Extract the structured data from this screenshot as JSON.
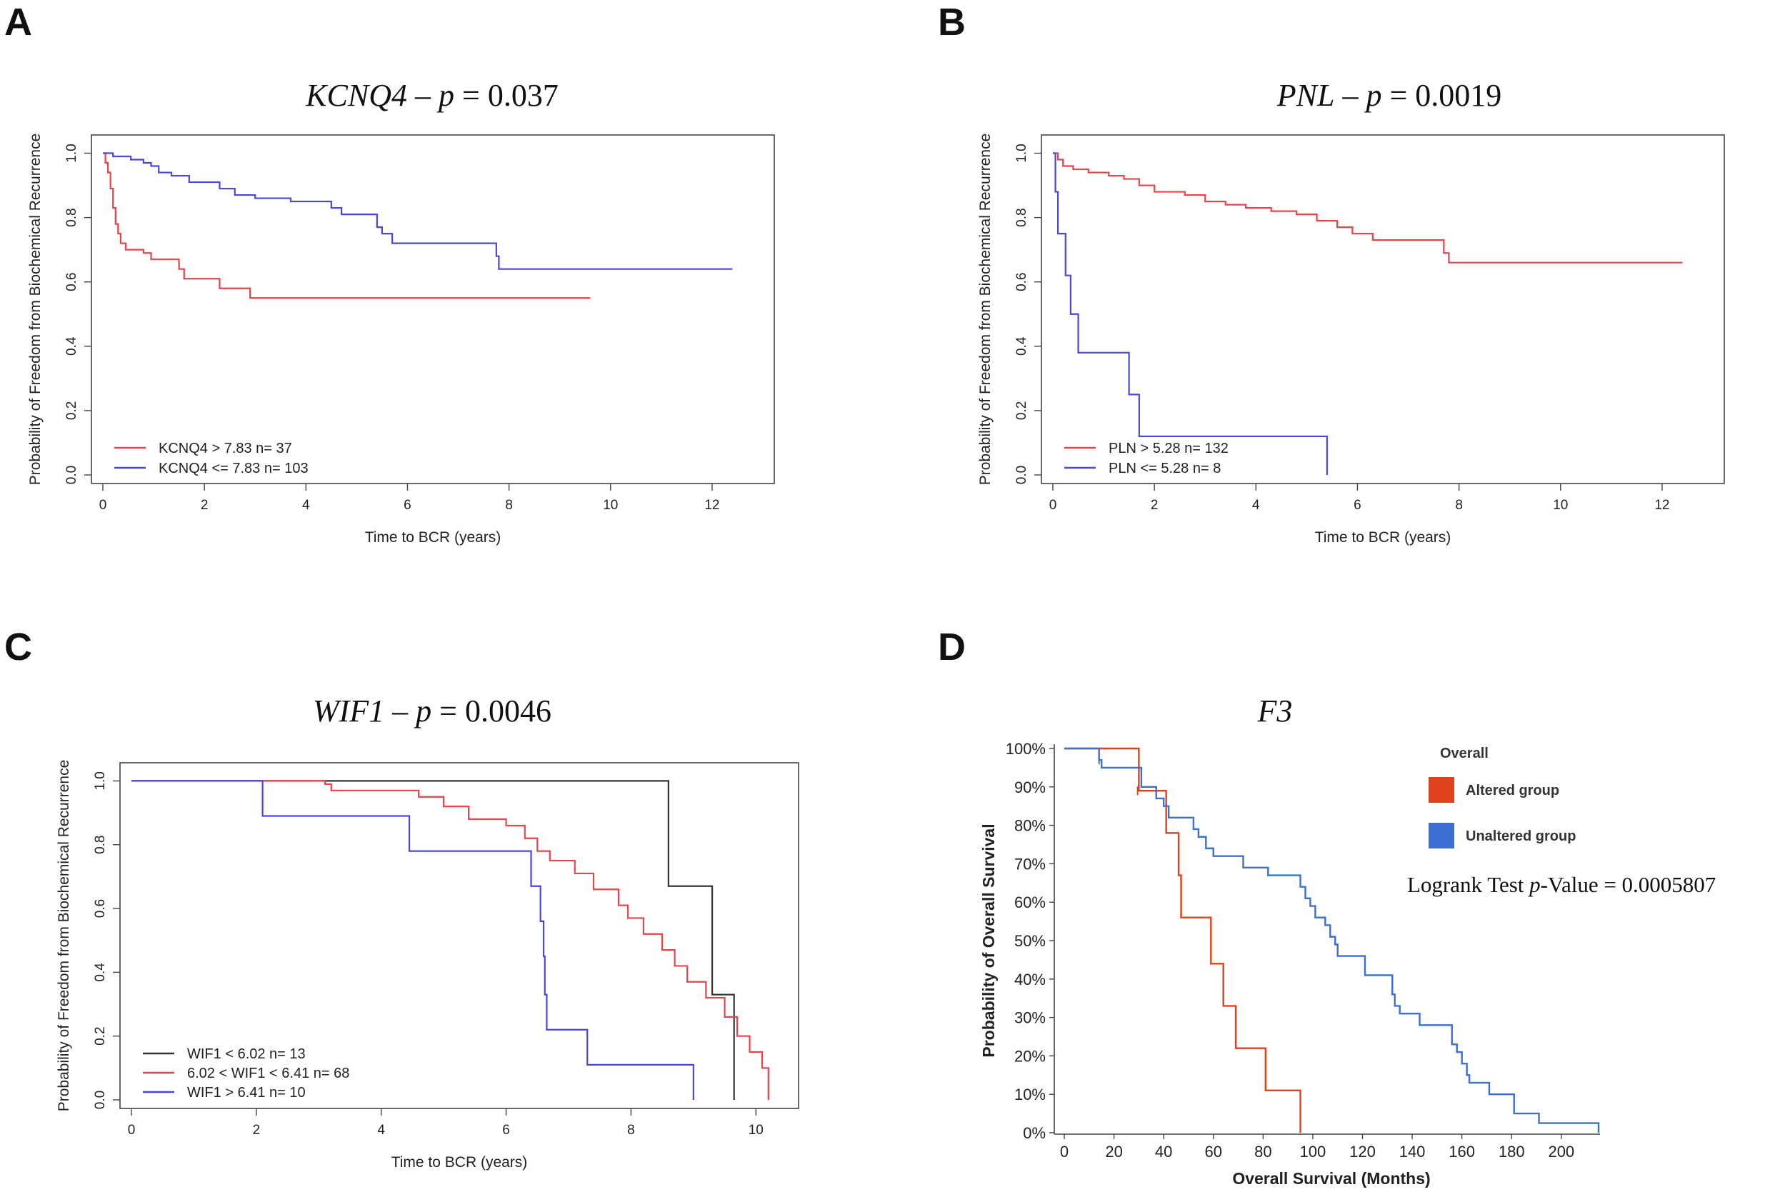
{
  "panels": [
    "A",
    "B",
    "C",
    "D"
  ],
  "titles": {
    "A": {
      "gene": "KCNQ4",
      "rest": " – ",
      "p": "p",
      "val": " = 0.037"
    },
    "B": {
      "gene": "PNL",
      "rest": " – ",
      "p": "p",
      "val": " = 0.0019"
    },
    "C": {
      "gene": "WIF1",
      "rest": " – ",
      "p": "p",
      "val": " = 0.0046"
    },
    "D": {
      "gene": "F3"
    }
  },
  "chart_data": [
    {
      "id": "A",
      "type": "line",
      "title": "KCNQ4 – p = 0.037",
      "xlabel": "Time to BCR (years)",
      "ylabel": "Probability of Freedom from Biochemical Recurrence",
      "xlim": [
        0,
        13
      ],
      "ylim": [
        0,
        1.03
      ],
      "xticks": [
        "0",
        "2",
        "4",
        "6",
        "8",
        "10",
        "12"
      ],
      "yticks": [
        "0.0",
        "0.2",
        "0.4",
        "0.6",
        "0.8",
        "1.0"
      ],
      "legend": "bottom-left",
      "series": [
        {
          "name": "KCNQ4 > 7.83 n= 37",
          "color": "#e8434b",
          "points": [
            [
              0,
              1.0
            ],
            [
              0.05,
              0.97
            ],
            [
              0.1,
              0.94
            ],
            [
              0.15,
              0.89
            ],
            [
              0.2,
              0.83
            ],
            [
              0.25,
              0.78
            ],
            [
              0.3,
              0.75
            ],
            [
              0.35,
              0.72
            ],
            [
              0.45,
              0.7
            ],
            [
              0.8,
              0.69
            ],
            [
              0.95,
              0.67
            ],
            [
              1.5,
              0.64
            ],
            [
              1.6,
              0.61
            ],
            [
              2.3,
              0.58
            ],
            [
              2.9,
              0.55
            ],
            [
              9.6,
              0.55
            ]
          ]
        },
        {
          "name": "KCNQ4 <= 7.83 n= 103",
          "color": "#4b45e0",
          "points": [
            [
              0,
              1.0
            ],
            [
              0.2,
              0.99
            ],
            [
              0.55,
              0.98
            ],
            [
              0.8,
              0.97
            ],
            [
              0.95,
              0.96
            ],
            [
              1.1,
              0.94
            ],
            [
              1.35,
              0.93
            ],
            [
              1.7,
              0.91
            ],
            [
              2.3,
              0.89
            ],
            [
              2.6,
              0.87
            ],
            [
              3.0,
              0.86
            ],
            [
              3.7,
              0.85
            ],
            [
              4.5,
              0.83
            ],
            [
              4.7,
              0.81
            ],
            [
              5.4,
              0.77
            ],
            [
              5.5,
              0.75
            ],
            [
              5.7,
              0.72
            ],
            [
              7.75,
              0.68
            ],
            [
              7.8,
              0.64
            ],
            [
              12.4,
              0.64
            ]
          ]
        }
      ]
    },
    {
      "id": "B",
      "type": "line",
      "title": "PNL – p = 0.0019",
      "xlabel": "Time to BCR (years)",
      "ylabel": "Probability of Freedom from Biochemical Recurrence",
      "xlim": [
        0,
        13
      ],
      "ylim": [
        0,
        1.03
      ],
      "xticks": [
        "0",
        "2",
        "4",
        "6",
        "8",
        "10",
        "12"
      ],
      "yticks": [
        "0.0",
        "0.2",
        "0.4",
        "0.6",
        "0.8",
        "1.0"
      ],
      "legend": "bottom-left",
      "series": [
        {
          "name": "PLN > 5.28 n= 132",
          "color": "#e8434b",
          "points": [
            [
              0,
              1.0
            ],
            [
              0.1,
              0.98
            ],
            [
              0.2,
              0.96
            ],
            [
              0.4,
              0.95
            ],
            [
              0.7,
              0.94
            ],
            [
              1.1,
              0.93
            ],
            [
              1.4,
              0.92
            ],
            [
              1.7,
              0.9
            ],
            [
              2.0,
              0.88
            ],
            [
              2.6,
              0.87
            ],
            [
              3.0,
              0.85
            ],
            [
              3.4,
              0.84
            ],
            [
              3.8,
              0.83
            ],
            [
              4.3,
              0.82
            ],
            [
              4.8,
              0.81
            ],
            [
              5.2,
              0.79
            ],
            [
              5.6,
              0.77
            ],
            [
              5.9,
              0.75
            ],
            [
              6.3,
              0.73
            ],
            [
              7.7,
              0.69
            ],
            [
              7.8,
              0.66
            ],
            [
              12.4,
              0.66
            ]
          ]
        },
        {
          "name": "PLN <= 5.28 n= 8",
          "color": "#4b45e0",
          "points": [
            [
              0,
              1.0
            ],
            [
              0.05,
              0.88
            ],
            [
              0.1,
              0.75
            ],
            [
              0.25,
              0.62
            ],
            [
              0.35,
              0.5
            ],
            [
              0.5,
              0.38
            ],
            [
              1.5,
              0.25
            ],
            [
              1.7,
              0.12
            ],
            [
              5.4,
              0.12
            ],
            [
              5.4,
              0.0
            ]
          ]
        }
      ]
    },
    {
      "id": "C",
      "type": "line",
      "title": "WIF1 – p = 0.0046",
      "xlabel": "Time to BCR (years)",
      "ylabel": "Probability of Freedom from Biochemical Recurrence",
      "xlim": [
        0,
        10.5
      ],
      "ylim": [
        0,
        1.03
      ],
      "xticks": [
        "0",
        "2",
        "4",
        "6",
        "8",
        "10"
      ],
      "yticks": [
        "0.0",
        "0.2",
        "0.4",
        "0.6",
        "0.8",
        "1.0"
      ],
      "legend": "bottom-left",
      "series": [
        {
          "name": "WIF1 < 6.02 n= 13",
          "color": "#333333",
          "points": [
            [
              0,
              1.0
            ],
            [
              8.55,
              1.0
            ],
            [
              8.6,
              0.67
            ],
            [
              9.3,
              0.33
            ],
            [
              9.65,
              0.0
            ]
          ]
        },
        {
          "name": "6.02 < WIF1 < 6.41 n= 68",
          "color": "#e8434b",
          "points": [
            [
              0,
              1.0
            ],
            [
              3.1,
              0.99
            ],
            [
              3.2,
              0.97
            ],
            [
              4.6,
              0.95
            ],
            [
              5.0,
              0.92
            ],
            [
              5.4,
              0.88
            ],
            [
              6.0,
              0.86
            ],
            [
              6.3,
              0.82
            ],
            [
              6.5,
              0.78
            ],
            [
              6.7,
              0.75
            ],
            [
              7.1,
              0.71
            ],
            [
              7.4,
              0.66
            ],
            [
              7.8,
              0.61
            ],
            [
              7.95,
              0.57
            ],
            [
              8.2,
              0.52
            ],
            [
              8.5,
              0.47
            ],
            [
              8.7,
              0.42
            ],
            [
              8.9,
              0.37
            ],
            [
              9.2,
              0.32
            ],
            [
              9.5,
              0.26
            ],
            [
              9.7,
              0.2
            ],
            [
              9.9,
              0.15
            ],
            [
              10.1,
              0.1
            ],
            [
              10.2,
              0.06
            ],
            [
              10.2,
              0.0
            ]
          ]
        },
        {
          "name": "WIF1 > 6.41 n= 10",
          "color": "#4b45e0",
          "points": [
            [
              0,
              1.0
            ],
            [
              2.1,
              0.89
            ],
            [
              4.45,
              0.78
            ],
            [
              6.4,
              0.67
            ],
            [
              6.55,
              0.56
            ],
            [
              6.6,
              0.45
            ],
            [
              6.62,
              0.33
            ],
            [
              6.65,
              0.22
            ],
            [
              7.3,
              0.11
            ],
            [
              9.0,
              0.0
            ]
          ]
        }
      ]
    },
    {
      "id": "D",
      "type": "line",
      "title": "F3",
      "xlabel": "Overall Survival (Months)",
      "ylabel": "Probability of Overall Survival",
      "xlim": [
        0,
        215
      ],
      "ylim": [
        0,
        100
      ],
      "xticks": [
        "0",
        "20",
        "40",
        "60",
        "80",
        "100",
        "120",
        "140",
        "160",
        "180",
        "200"
      ],
      "yticks": [
        "0%",
        "10%",
        "20%",
        "30%",
        "40%",
        "50%",
        "60%",
        "70%",
        "80%",
        "90%",
        "100%"
      ],
      "legend_title": "Overall",
      "logrank": {
        "label": "Logrank Test ",
        "p": "p",
        "rest": "-Value = 0.0005807"
      },
      "series": [
        {
          "name": "Altered group",
          "color": "#e0401a",
          "points": [
            [
              0,
              100
            ],
            [
              29,
              100
            ],
            [
              30,
              89
            ],
            [
              40,
              89
            ],
            [
              41,
              78
            ],
            [
              45,
              78
            ],
            [
              46,
              67
            ],
            [
              47,
              56
            ],
            [
              55,
              56
            ],
            [
              59,
              44
            ],
            [
              63,
              44
            ],
            [
              64,
              33
            ],
            [
              67,
              33
            ],
            [
              69,
              22
            ],
            [
              80,
              22
            ],
            [
              81,
              11
            ],
            [
              95,
              11
            ],
            [
              95,
              0
            ]
          ]
        },
        {
          "name": "Unaltered group",
          "color": "#3c6fd0",
          "points": [
            [
              0,
              100
            ],
            [
              13,
              100
            ],
            [
              14,
              97
            ],
            [
              15,
              95
            ],
            [
              30,
              95
            ],
            [
              31,
              90
            ],
            [
              35,
              90
            ],
            [
              37,
              87
            ],
            [
              40,
              85
            ],
            [
              42,
              82
            ],
            [
              50,
              82
            ],
            [
              52,
              79
            ],
            [
              54,
              77
            ],
            [
              57,
              74
            ],
            [
              60,
              72
            ],
            [
              70,
              72
            ],
            [
              72,
              69
            ],
            [
              80,
              69
            ],
            [
              82,
              67
            ],
            [
              94,
              67
            ],
            [
              95,
              64
            ],
            [
              97,
              61
            ],
            [
              99,
              59
            ],
            [
              101,
              56
            ],
            [
              105,
              54
            ],
            [
              107,
              51
            ],
            [
              109,
              49
            ],
            [
              110,
              46
            ],
            [
              120,
              46
            ],
            [
              121,
              41
            ],
            [
              130,
              41
            ],
            [
              132,
              36
            ],
            [
              133,
              33
            ],
            [
              135,
              31
            ],
            [
              142,
              31
            ],
            [
              143,
              28
            ],
            [
              155,
              28
            ],
            [
              156,
              23
            ],
            [
              158,
              21
            ],
            [
              160,
              18
            ],
            [
              162,
              15
            ],
            [
              163,
              13
            ],
            [
              170,
              13
            ],
            [
              171,
              10
            ],
            [
              180,
              10
            ],
            [
              181,
              5
            ],
            [
              190,
              5
            ],
            [
              191,
              2.5
            ],
            [
              215,
              2.5
            ],
            [
              215,
              0
            ]
          ]
        }
      ]
    }
  ]
}
